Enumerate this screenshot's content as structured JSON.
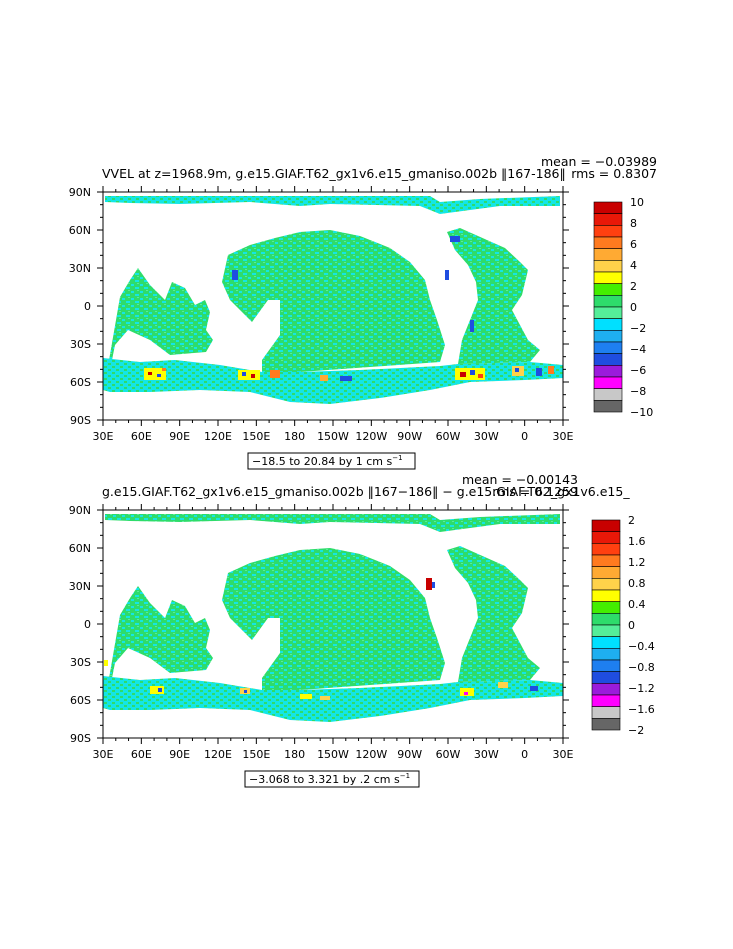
{
  "colors": {
    "land": "#ffffff",
    "scale": [
      "#ff00ff",
      "#9b1bdb",
      "#1f4de0",
      "#1e7ff0",
      "#1eaff0",
      "#00e0ff",
      "#55ee99",
      "#2edc6b",
      "#44ee00",
      "#ffff00",
      "#ffd24a",
      "#ffaa33",
      "#ff7a1f",
      "#ff4010",
      "#e81808",
      "#c80000"
    ],
    "scale_low": "#666666",
    "scale_low2": "#c8c8c8",
    "dominant_ocean_pos": "#33e680",
    "dominant_ocean_neg": "#13e6e6"
  },
  "axes": {
    "x_ticks": [
      "30E",
      "60E",
      "90E",
      "120E",
      "150E",
      "180",
      "150W",
      "120W",
      "90W",
      "60W",
      "30W",
      "0",
      "30E"
    ],
    "y_ticks": [
      "90N",
      "60N",
      "30N",
      "0",
      "30S",
      "60S",
      "90S"
    ]
  },
  "panels": [
    {
      "title": "VVEL at z=1968.9m, g.e15.GIAF.T62_gx1v6.e15_gmaniso.002b ‖167-186‖",
      "mean": "mean = −0.03989",
      "rms": "rms = 0.8307",
      "range": "−18.5 to 20.84 by 1 cm s",
      "range_sup": "−1",
      "colorbar_labels": [
        "10",
        "8",
        "6",
        "4",
        "2",
        "0",
        "−2",
        "−4",
        "−6",
        "−8",
        "−10"
      ]
    },
    {
      "title": "g.e15.GIAF.T62_gx1v6.e15_gmaniso.002b ‖167−186‖ − g.e15.GIAF.T62_gx1v6.e15_",
      "mean": "mean = −0.00143",
      "rms": "rms = 0.1259",
      "range": "−3.068 to 3.321 by .2 cm s",
      "range_sup": "−1",
      "colorbar_labels": [
        "2",
        "1.6",
        "1.2",
        "0.8",
        "0.4",
        "0",
        "−0.4",
        "−0.8",
        "−1.2",
        "−1.6",
        "−2"
      ]
    }
  ]
}
